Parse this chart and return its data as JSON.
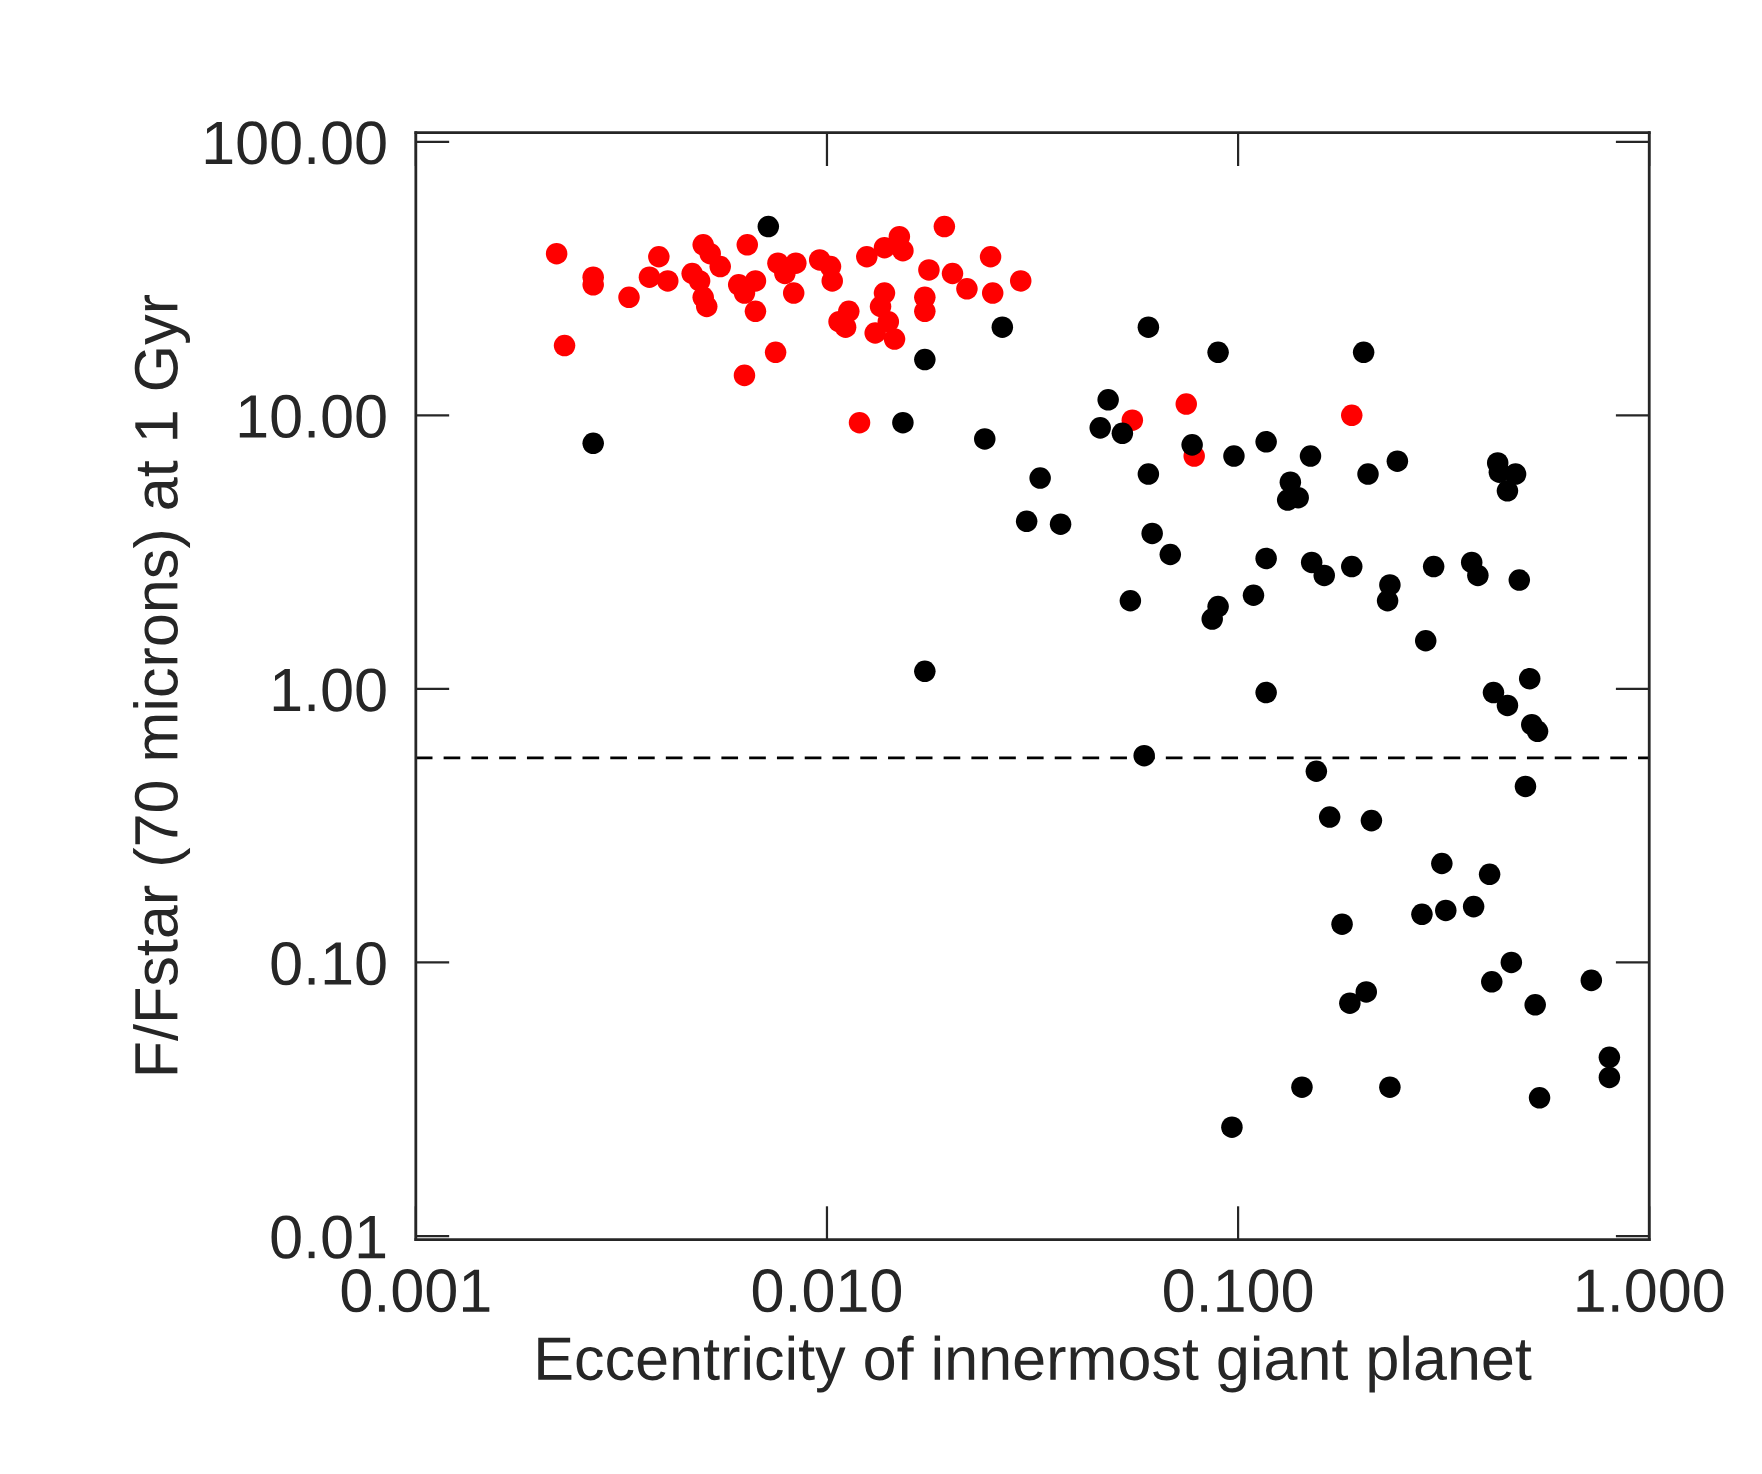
{
  "chart_data": {
    "type": "scatter",
    "xlabel": "Eccentricity of innermost giant planet",
    "ylabel": "F/Fstar (70 microns) at 1 Gyr",
    "log": "xy",
    "marker": "circle",
    "grid": false,
    "legend": false,
    "xlim": [
      0.001,
      1.0
    ],
    "ylim": [
      0.0097,
      108
    ],
    "xticks": [
      {
        "value": 0.001,
        "label": "0.001"
      },
      {
        "value": 0.01,
        "label": "0.010"
      },
      {
        "value": 0.1,
        "label": "0.100"
      },
      {
        "value": 1,
        "label": "1.000"
      }
    ],
    "yticks": [
      {
        "value": 0.01,
        "label": "0.01"
      },
      {
        "value": 0.1,
        "label": "0.10"
      },
      {
        "value": 1,
        "label": "1.00"
      },
      {
        "value": 10,
        "label": "10.00"
      },
      {
        "value": 100,
        "label": "100.00"
      }
    ],
    "ref_lines": [
      {
        "axis": "y",
        "value": 0.56,
        "color": "#000000",
        "line_style": "dashed"
      }
    ],
    "series": [
      {
        "color": "#ff0000",
        "x": [
          0.0022,
          0.0023,
          0.0027,
          0.0027,
          0.0033,
          0.0037,
          0.0039,
          0.0041,
          0.0047,
          0.0049,
          0.005,
          0.0052,
          0.0055,
          0.005,
          0.0051,
          0.0061,
          0.0063,
          0.0064,
          0.0067,
          0.0067,
          0.0063,
          0.0075,
          0.0076,
          0.0079,
          0.0084,
          0.0083,
          0.0096,
          0.0102,
          0.0103,
          0.0107,
          0.0111,
          0.0113,
          0.012,
          0.0125,
          0.0131,
          0.0138,
          0.015,
          0.0153,
          0.0135,
          0.0138,
          0.0141,
          0.0146,
          0.0173,
          0.0173,
          0.0177,
          0.0193,
          0.0202,
          0.0219,
          0.025,
          0.0253,
          0.0296,
          0.0553,
          0.0748,
          0.0782,
          0.189
        ],
        "values": [
          39,
          18,
          32,
          30,
          27,
          32,
          38,
          31,
          33,
          31,
          42,
          39,
          35,
          27,
          25,
          30,
          28,
          42,
          31,
          24,
          14,
          17,
          36,
          33,
          36,
          28,
          37,
          35,
          31,
          22,
          21,
          24,
          9.4,
          38,
          20,
          41,
          45,
          40,
          25,
          28,
          22,
          19,
          27,
          24,
          34,
          49,
          33,
          29,
          38,
          28,
          31,
          9.6,
          11,
          7.1,
          10
        ]
      },
      {
        "color": "#000000",
        "x": [
          0.0072,
          0.0027,
          0.0173,
          0.0153,
          0.0242,
          0.0173,
          0.0267,
          0.0605,
          0.0894,
          0.202,
          0.0483,
          0.0462,
          0.0523,
          0.0773,
          0.117,
          0.0977,
          0.15,
          0.0605,
          0.033,
          0.207,
          0.244,
          0.134,
          0.132,
          0.14,
          0.428,
          0.432,
          0.473,
          0.452,
          0.0306,
          0.037,
          0.0618,
          0.0684,
          0.117,
          0.151,
          0.162,
          0.189,
          0.299,
          0.37,
          0.383,
          0.483,
          0.0547,
          0.109,
          0.0894,
          0.0865,
          0.234,
          0.231,
          0.286,
          0.117,
          0.418,
          0.452,
          0.512,
          0.518,
          0.535,
          0.0591,
          0.155,
          0.5,
          0.167,
          0.211,
          0.313,
          0.409,
          0.28,
          0.32,
          0.374,
          0.179,
          0.462,
          0.414,
          0.723,
          0.205,
          0.187,
          0.528,
          0.8,
          0.8,
          0.143,
          0.234,
          0.541,
          0.0966
        ],
        "values": [
          49,
          7.9,
          16,
          9.4,
          8.2,
          1.16,
          21,
          21,
          17,
          17,
          11.4,
          9.0,
          8.6,
          7.8,
          8.0,
          7.1,
          7.1,
          6.1,
          5.9,
          6.1,
          6.8,
          5.7,
          4.9,
          5.0,
          6.7,
          6.2,
          6.1,
          5.3,
          4.1,
          4.0,
          3.7,
          3.1,
          3.0,
          2.9,
          2.6,
          2.8,
          2.8,
          2.9,
          2.6,
          2.5,
          2.1,
          2.2,
          2.0,
          1.8,
          2.4,
          2.1,
          1.5,
          0.97,
          0.97,
          0.87,
          1.09,
          0.74,
          0.7,
          0.57,
          0.5,
          0.44,
          0.34,
          0.33,
          0.23,
          0.21,
          0.15,
          0.155,
          0.16,
          0.138,
          0.1,
          0.085,
          0.086,
          0.078,
          0.071,
          0.07,
          0.045,
          0.038,
          0.035,
          0.035,
          0.032,
          0.025
        ]
      }
    ]
  }
}
